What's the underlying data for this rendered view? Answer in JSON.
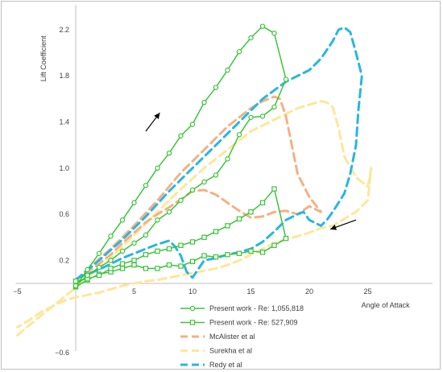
{
  "chart_data": {
    "type": "line",
    "title": "",
    "xlabel": "Angle of Attack",
    "ylabel": "Lift Coefficient",
    "xlim": [
      -5,
      30
    ],
    "ylim": [
      -0.6,
      2.4
    ],
    "x_ticks": [
      "−5",
      "5",
      "10",
      "15",
      "20",
      "25"
    ],
    "x_tick_values": [
      -5,
      5,
      10,
      15,
      20,
      25
    ],
    "y_ticks": [
      "−0.6",
      "0.2",
      "0.6",
      "1.0",
      "1.4",
      "1.8",
      "2.2"
    ],
    "y_tick_values": [
      -0.6,
      0.2,
      0.6,
      1.0,
      1.4,
      1.8,
      2.2
    ],
    "grid": false,
    "legend_position": "bottom-center",
    "series": [
      {
        "name": "Present work - Re: 1,055,818",
        "color": "#3cc43c",
        "style": "solid",
        "marker": "circle",
        "x": [
          0,
          1,
          2,
          3,
          4,
          5,
          6,
          7,
          8,
          9,
          10,
          11,
          12,
          13,
          14,
          15,
          16,
          17,
          18,
          17,
          16,
          15,
          14,
          13,
          12,
          11,
          10,
          9,
          8,
          7,
          6,
          5,
          4,
          3,
          2,
          1,
          0
        ],
        "y": [
          -0.03,
          0.12,
          0.26,
          0.41,
          0.55,
          0.7,
          0.85,
          1.0,
          1.13,
          1.28,
          1.38,
          1.57,
          1.7,
          1.85,
          2.01,
          2.13,
          2.23,
          2.17,
          1.77,
          1.53,
          1.45,
          1.44,
          1.29,
          1.08,
          0.94,
          0.88,
          0.81,
          0.72,
          0.62,
          0.55,
          0.42,
          0.35,
          0.28,
          0.2,
          0.14,
          0.07,
          -0.02
        ]
      },
      {
        "name": "Present work - Re: 527,909",
        "color": "#3cc43c",
        "style": "solid",
        "marker": "square",
        "x": [
          0,
          1,
          2,
          3,
          4,
          5,
          6,
          7,
          8,
          9,
          10,
          11,
          12,
          13,
          14,
          15,
          16,
          17,
          18,
          17,
          16,
          15,
          14,
          13,
          12,
          11,
          10,
          9,
          8,
          7,
          6,
          5,
          4,
          3,
          2,
          1,
          0
        ],
        "y": [
          -0.03,
          0.03,
          0.08,
          0.1,
          0.13,
          0.16,
          0.13,
          0.13,
          0.16,
          0.15,
          0.19,
          0.24,
          0.23,
          0.25,
          0.26,
          0.28,
          0.27,
          0.33,
          0.39,
          0.82,
          0.7,
          0.62,
          0.56,
          0.5,
          0.45,
          0.4,
          0.36,
          0.33,
          0.3,
          0.28,
          0.25,
          0.2,
          0.17,
          0.13,
          0.07,
          0.04,
          0.02
        ]
      },
      {
        "name": "McAlister et al",
        "color": "#f4b183",
        "style": "dashed",
        "marker": "none",
        "x": [
          0,
          1,
          3,
          5,
          7,
          9,
          11,
          13,
          15,
          16,
          17,
          17.5,
          18,
          18.5,
          19,
          20,
          21,
          20,
          19,
          18,
          17,
          16,
          15,
          14,
          13,
          12,
          11,
          10,
          9,
          8,
          7,
          6,
          5,
          4,
          3,
          2,
          1,
          0
        ],
        "y": [
          0.02,
          0.12,
          0.3,
          0.5,
          0.72,
          0.96,
          1.16,
          1.36,
          1.52,
          1.58,
          1.62,
          1.6,
          1.45,
          1.2,
          0.95,
          0.75,
          0.62,
          0.67,
          0.6,
          0.63,
          0.62,
          0.58,
          0.57,
          0.63,
          0.7,
          0.77,
          0.81,
          0.8,
          0.73,
          0.66,
          0.6,
          0.53,
          0.44,
          0.35,
          0.25,
          0.17,
          0.1,
          0.03
        ]
      },
      {
        "name": "Surekha et al",
        "color": "#ffe699",
        "style": "dashed",
        "marker": "none",
        "x": [
          -5,
          -3,
          -1,
          1,
          3,
          5,
          7,
          9,
          11,
          13,
          15,
          17,
          19,
          20,
          21,
          21.5,
          22,
          22.5,
          23,
          24,
          25,
          25.3,
          25,
          24,
          23,
          22,
          21,
          20,
          19,
          18,
          17,
          16,
          15,
          14,
          13,
          12,
          11,
          10,
          9,
          8,
          7,
          6,
          5,
          4,
          3,
          2,
          1,
          0,
          -1,
          -2,
          -3,
          -4,
          -5
        ],
        "y": [
          -0.45,
          -0.28,
          -0.12,
          0.05,
          0.22,
          0.42,
          0.62,
          0.82,
          1.0,
          1.16,
          1.32,
          1.42,
          1.52,
          1.55,
          1.58,
          1.57,
          1.53,
          1.35,
          1.1,
          0.92,
          0.84,
          1.0,
          0.72,
          0.62,
          0.56,
          0.5,
          0.48,
          0.44,
          0.41,
          0.38,
          0.35,
          0.3,
          0.25,
          0.2,
          0.16,
          0.13,
          0.11,
          0.09,
          0.07,
          0.05,
          0.03,
          0.02,
          0.0,
          -0.02,
          -0.05,
          -0.08,
          -0.1,
          -0.12,
          -0.15,
          -0.2,
          -0.25,
          -0.32,
          -0.38
        ]
      },
      {
        "name": "Redy et al",
        "color": "#29b6e0",
        "style": "dashed",
        "marker": "none",
        "x": [
          0,
          2,
          4,
          6,
          8,
          10,
          12,
          14,
          16,
          18,
          20,
          21,
          22,
          22.5,
          23,
          23.5,
          24,
          24.5,
          24.2,
          24,
          23.5,
          23,
          22.5,
          22,
          21.5,
          21,
          20,
          19.5,
          19,
          18,
          17,
          16,
          15,
          14,
          13,
          12,
          11,
          10,
          9.5,
          9,
          8.5,
          8,
          7,
          6,
          5,
          4,
          3,
          2,
          1,
          0
        ],
        "y": [
          0.03,
          0.2,
          0.38,
          0.58,
          0.8,
          1.0,
          1.2,
          1.4,
          1.6,
          1.75,
          1.85,
          1.95,
          2.1,
          2.2,
          2.22,
          2.18,
          2.0,
          1.8,
          1.5,
          1.2,
          0.95,
          0.78,
          0.7,
          0.62,
          0.55,
          0.5,
          0.55,
          0.62,
          0.6,
          0.55,
          0.45,
          0.36,
          0.3,
          0.27,
          0.25,
          0.22,
          0.2,
          0.05,
          0.1,
          0.24,
          0.32,
          0.37,
          0.34,
          0.3,
          0.26,
          0.22,
          0.17,
          0.12,
          0.08,
          0.04
        ]
      }
    ],
    "annotations": [
      {
        "name": "upstroke-arrow",
        "from": [
          6.0,
          1.32
        ],
        "to": [
          7.2,
          1.48
        ],
        "color": "#000000"
      },
      {
        "name": "downstroke-arrow",
        "from": [
          24.0,
          0.55
        ],
        "to": [
          21.8,
          0.47
        ],
        "color": "#000000"
      }
    ]
  }
}
